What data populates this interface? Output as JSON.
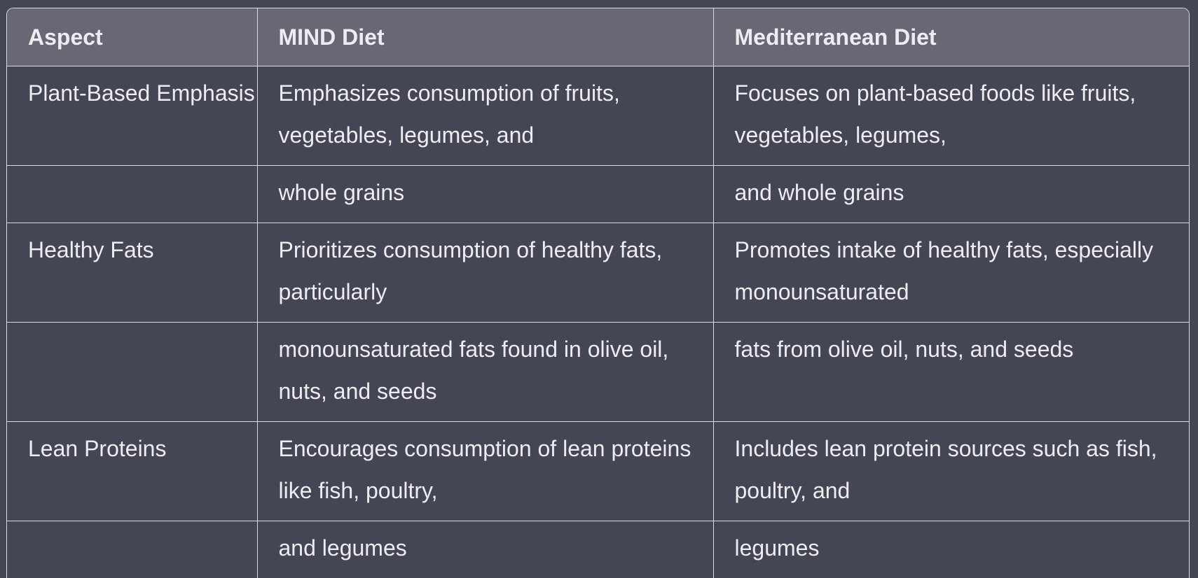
{
  "table": {
    "headers": [
      "Aspect",
      "MIND Diet",
      "Mediterranean Diet"
    ],
    "rows": [
      [
        "Plant-Based Emphasis",
        "Emphasizes consumption of fruits, vegetables, legumes, and",
        "Focuses on plant-based foods like fruits, vegetables, legumes,"
      ],
      [
        "",
        "whole grains",
        "and whole grains"
      ],
      [
        "Healthy Fats",
        "Prioritizes consumption of healthy fats, particularly",
        "Promotes intake of healthy fats, especially monounsaturated"
      ],
      [
        "",
        "monounsaturated fats found in olive oil, nuts, and seeds",
        "fats from olive oil, nuts, and seeds"
      ],
      [
        "Lean Proteins",
        "Encourages consumption of lean proteins like fish, poultry,",
        "Includes lean protein sources such as fish, poultry, and"
      ],
      [
        "",
        "and legumes",
        "legumes"
      ]
    ]
  },
  "colors": {
    "background": "#444654",
    "header_background": "#676874",
    "border": "#d9d9e3",
    "text": "#ececf1"
  }
}
